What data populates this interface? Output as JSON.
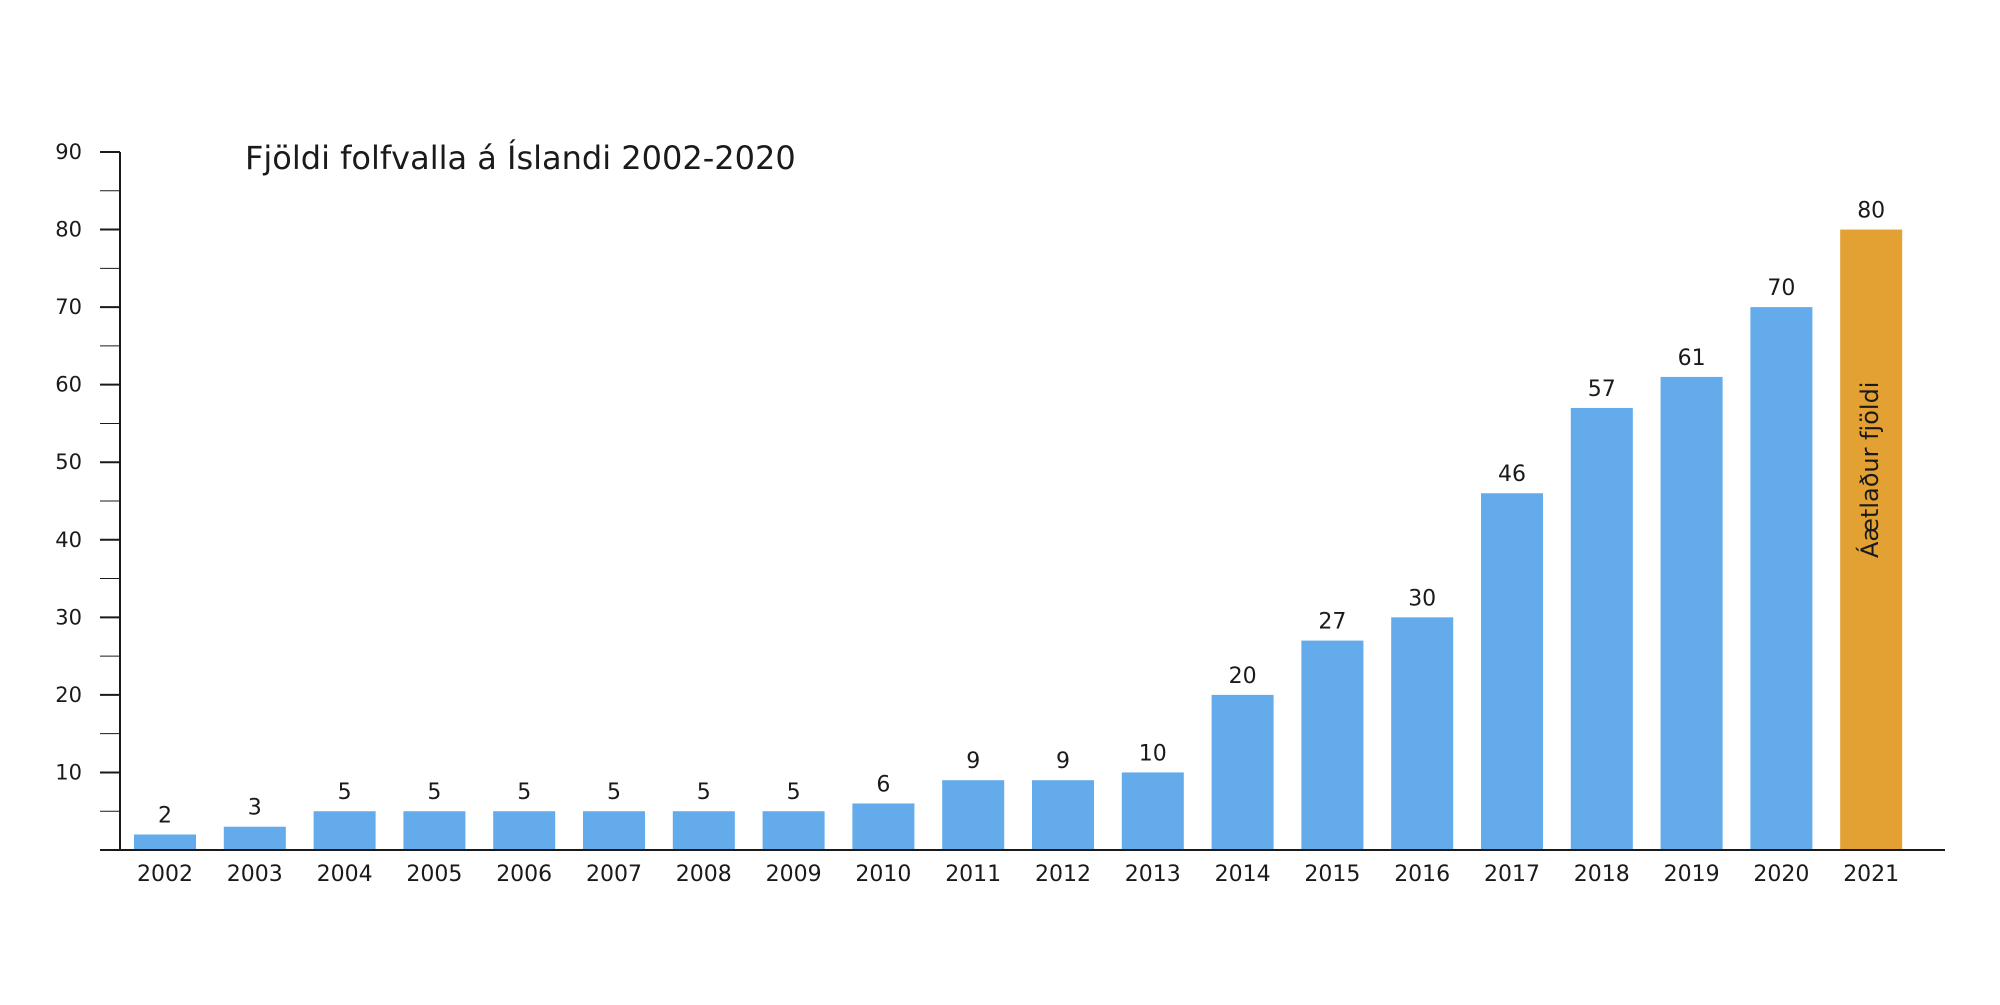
{
  "chart_data": {
    "type": "bar",
    "title": "Fjöldi folfvalla á Íslandi 2002-2020",
    "categories": [
      "2002",
      "2003",
      "2004",
      "2005",
      "2006",
      "2007",
      "2008",
      "2009",
      "2010",
      "2011",
      "2012",
      "2013",
      "2014",
      "2015",
      "2016",
      "2017",
      "2018",
      "2019",
      "2020",
      "2021"
    ],
    "values": [
      2,
      3,
      5,
      5,
      5,
      5,
      5,
      5,
      6,
      9,
      9,
      10,
      20,
      27,
      30,
      46,
      57,
      61,
      70,
      80
    ],
    "value_labels": [
      "2",
      "3",
      "5",
      "5",
      "5",
      "5",
      "5",
      "5",
      "6",
      "9",
      "9",
      "10",
      "20",
      "27",
      "30",
      "46",
      "57",
      "61",
      "70",
      "80"
    ],
    "estimated_index": 19,
    "estimated_label": "Áætlaður fjöldi",
    "ylim": [
      0,
      90
    ],
    "y_ticks": [
      10,
      20,
      30,
      40,
      50,
      60,
      70,
      80,
      90
    ],
    "grid": false,
    "legend": "none",
    "colors": {
      "actual": "#63abea",
      "estimated": "#e3a033",
      "axis": "#1a1a1a"
    }
  }
}
